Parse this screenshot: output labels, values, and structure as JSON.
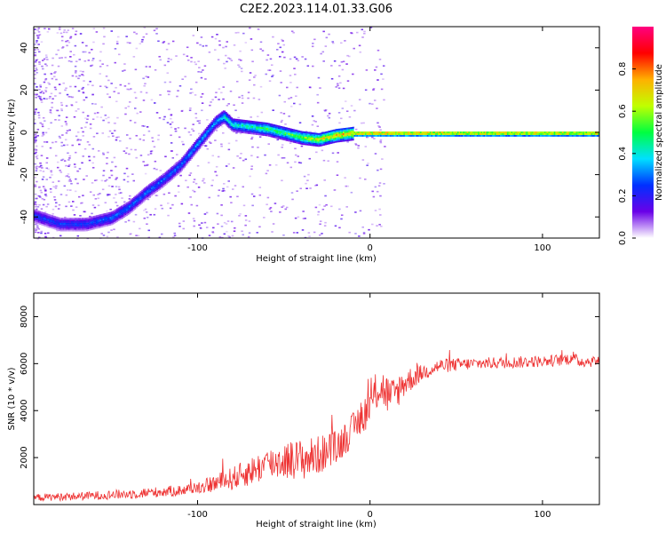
{
  "figure_title": "C2E2.2023.114.01.33.G06",
  "chart_data": [
    {
      "type": "heatmap",
      "xlabel": "Height of straight line (km)",
      "ylabel": "Frequency (Hz)",
      "xlim": [
        -195,
        133
      ],
      "ylim": [
        -50,
        50
      ],
      "xticks": [
        -100,
        0,
        100
      ],
      "yticks": [
        -40,
        -20,
        0,
        20,
        40
      ],
      "colorbar": {
        "label": "Normalized spectral amplitude",
        "range": [
          0,
          1
        ],
        "ticks": [
          "0.0",
          "0.2",
          "0.4",
          "0.6",
          "0.8"
        ],
        "colormap": [
          "#ffffff",
          "#6a00e8",
          "#0030ff",
          "#00e0ff",
          "#00ff40",
          "#c0ff00",
          "#ffb000",
          "#ff0000",
          "#ff0080"
        ]
      },
      "ridge_x": [
        -195,
        -180,
        -165,
        -150,
        -140,
        -130,
        -120,
        -110,
        -100,
        -95,
        -90,
        -85,
        -80,
        -70,
        -60,
        -50,
        -40,
        -30,
        -20,
        -10,
        0,
        20,
        60,
        100,
        115,
        133
      ],
      "ridge_y": [
        -39,
        -43,
        -43,
        -40,
        -35,
        -28,
        -22,
        -15,
        -5,
        0,
        5,
        8,
        4,
        3,
        2,
        0,
        -2,
        -3,
        -1,
        0,
        0,
        0,
        0,
        0,
        0,
        0
      ],
      "ridge_amp": [
        0.3,
        0.3,
        0.3,
        0.35,
        0.35,
        0.35,
        0.35,
        0.35,
        0.4,
        0.4,
        0.4,
        0.5,
        0.5,
        0.55,
        0.6,
        0.6,
        0.7,
        0.8,
        0.85,
        0.9,
        0.95,
        0.95,
        0.9,
        0.9,
        0.9,
        0.9
      ]
    },
    {
      "type": "line",
      "xlabel": "Height of straight line (km)",
      "ylabel": "SNR (10 * v/v)",
      "xlim": [
        -195,
        133
      ],
      "ylim": [
        0,
        9000
      ],
      "xticks": [
        -100,
        0,
        100
      ],
      "yticks": [
        2000,
        4000,
        6000,
        8000
      ],
      "color": "#ee3333",
      "envelope_x": [
        -195,
        -170,
        -140,
        -110,
        -95,
        -80,
        -70,
        -60,
        -50,
        -40,
        -30,
        -20,
        -10,
        0,
        5,
        8,
        12,
        20,
        30,
        40,
        60,
        80,
        100,
        110,
        115,
        118,
        120,
        125,
        133
      ],
      "envelope_y": [
        300,
        350,
        450,
        600,
        800,
        1100,
        1400,
        1700,
        1900,
        1900,
        2100,
        2400,
        3200,
        4200,
        5000,
        4900,
        4500,
        5200,
        5600,
        5900,
        6000,
        6050,
        6100,
        6150,
        6200,
        6300,
        6100,
        6100,
        6100
      ],
      "noise_x": [
        -195,
        -100,
        -80,
        -40,
        -10,
        10,
        30,
        60,
        115,
        120,
        133
      ],
      "noise_y": [
        150,
        250,
        500,
        900,
        700,
        900,
        350,
        250,
        250,
        250,
        250
      ]
    }
  ]
}
